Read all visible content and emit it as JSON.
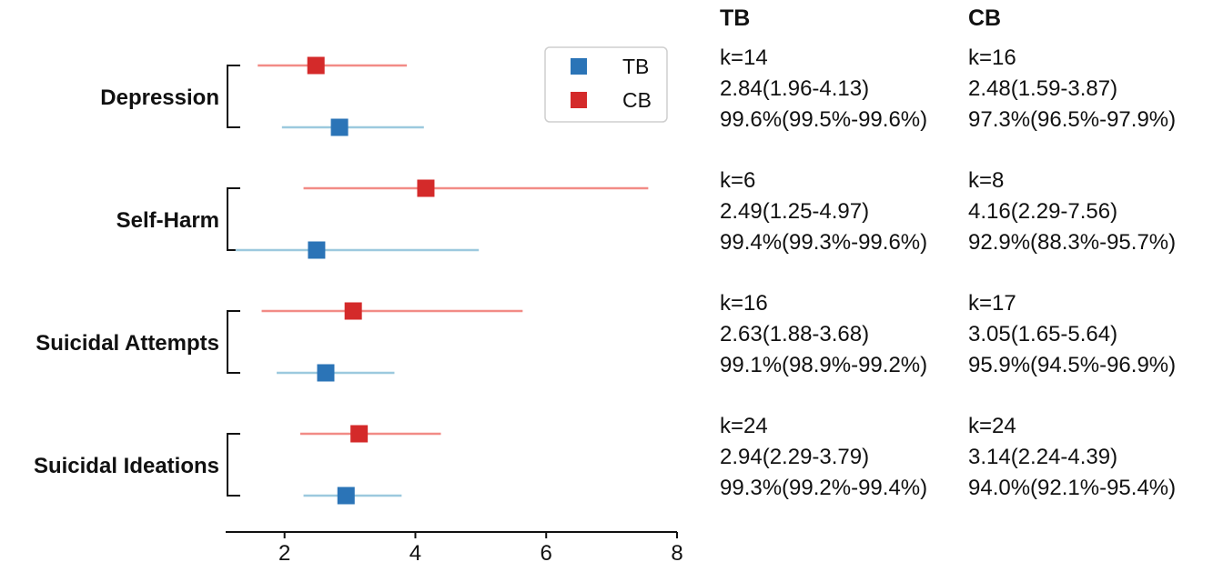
{
  "chart_data": {
    "type": "forest",
    "title": "",
    "xlabel": "",
    "ylabel": "",
    "xlim": [
      1.1,
      8.0
    ],
    "xticks": [
      2,
      4,
      6,
      8
    ],
    "grid": false,
    "legend": {
      "placement": "top-right",
      "entries": [
        "TB",
        "CB"
      ]
    },
    "outcomes": [
      "Depression",
      "Self-Harm",
      "Suicidal Attempts",
      "Suicidal Ideations"
    ],
    "series": [
      {
        "name": "TB",
        "color": "#2b74b7",
        "ci_color": "#9cc9de",
        "point": [
          2.84,
          2.49,
          2.63,
          2.94
        ],
        "lower": [
          1.96,
          1.25,
          1.88,
          2.29
        ],
        "upper": [
          4.13,
          4.97,
          3.68,
          3.79
        ]
      },
      {
        "name": "CB",
        "color": "#d42a2a",
        "ci_color": "#f28b86",
        "point": [
          2.48,
          4.16,
          3.05,
          3.14
        ],
        "lower": [
          1.59,
          2.29,
          1.65,
          2.24
        ],
        "upper": [
          3.87,
          7.56,
          5.64,
          4.39
        ]
      }
    ]
  },
  "stats_table": {
    "columns": [
      {
        "header": "TB",
        "rows": [
          {
            "k": "k=14",
            "estimate": "2.84(1.96-4.13)",
            "i2": "99.6%(99.5%-99.6%)"
          },
          {
            "k": "k=6",
            "estimate": "2.49(1.25-4.97)",
            "i2": "99.4%(99.3%-99.6%)"
          },
          {
            "k": "k=16",
            "estimate": "2.63(1.88-3.68)",
            "i2": "99.1%(98.9%-99.2%)"
          },
          {
            "k": "k=24",
            "estimate": "2.94(2.29-3.79)",
            "i2": "99.3%(99.2%-99.4%)"
          }
        ]
      },
      {
        "header": "CB",
        "rows": [
          {
            "k": "k=16",
            "estimate": "2.48(1.59-3.87)",
            "i2": "97.3%(96.5%-97.9%)"
          },
          {
            "k": "k=8",
            "estimate": "4.16(2.29-7.56)",
            "i2": "92.9%(88.3%-95.7%)"
          },
          {
            "k": "k=17",
            "estimate": "3.05(1.65-5.64)",
            "i2": "95.9%(94.5%-96.9%)"
          },
          {
            "k": "k=24",
            "estimate": "3.14(2.24-4.39)",
            "i2": "94.0%(92.1%-95.4%)"
          }
        ]
      }
    ]
  }
}
